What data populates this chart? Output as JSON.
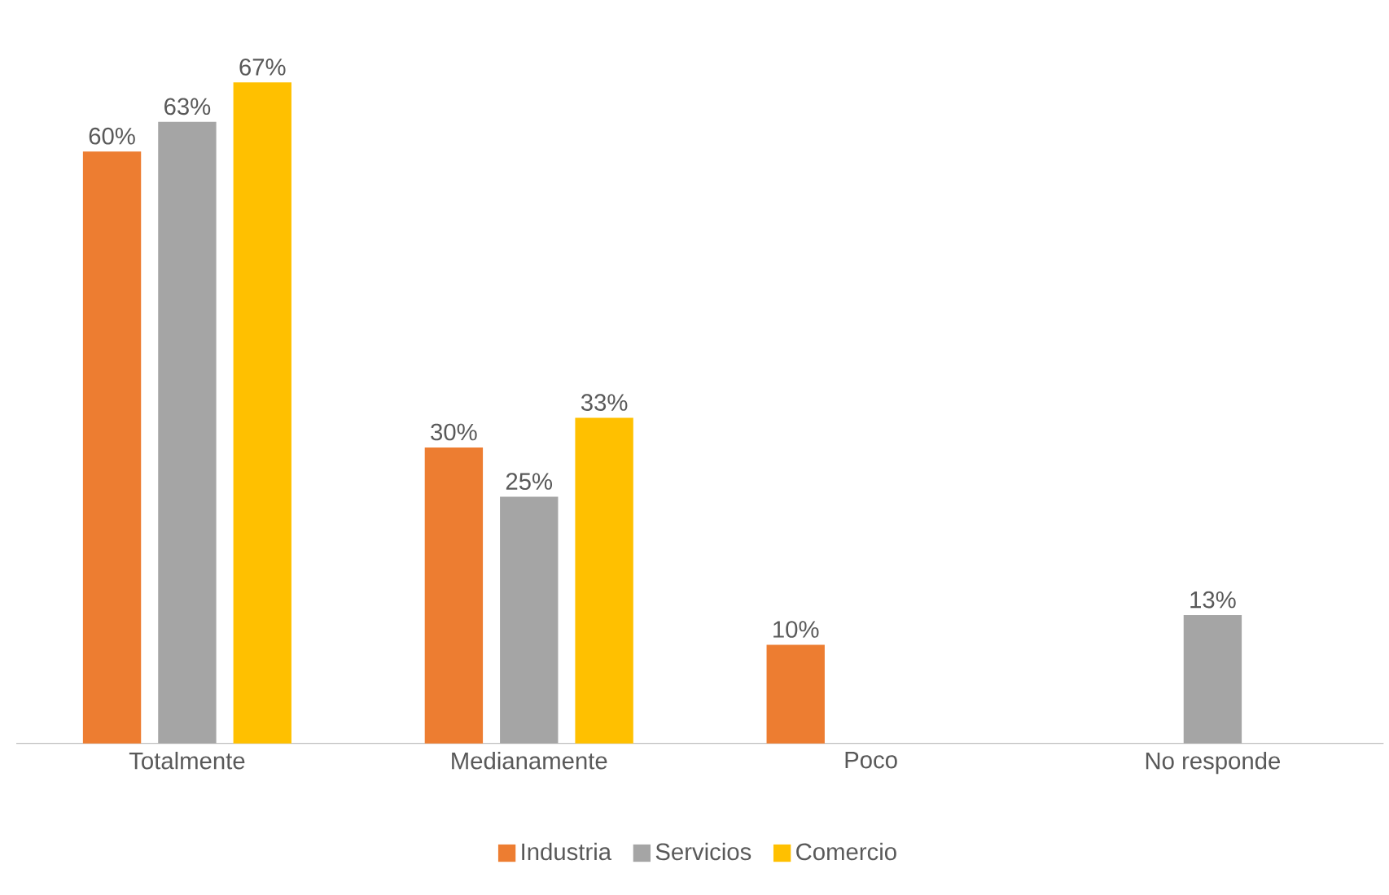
{
  "chart_data": {
    "type": "bar",
    "categories": [
      "Totalmente",
      "Medianamente",
      "Poco",
      "No responde"
    ],
    "series": [
      {
        "name": "Industria",
        "color": "#ed7d31",
        "values": [
          60,
          30,
          10,
          null
        ],
        "value_labels": [
          "60%",
          "30%",
          "10%",
          null
        ]
      },
      {
        "name": "Servicios",
        "color": "#a5a5a5",
        "values": [
          63,
          25,
          null,
          13
        ],
        "value_labels": [
          "63%",
          "25%",
          null,
          "13%"
        ]
      },
      {
        "name": "Comercio",
        "color": "#ffc000",
        "values": [
          67,
          33,
          null,
          null
        ],
        "value_labels": [
          "67%",
          "33%",
          null,
          null
        ]
      }
    ],
    "legend": "bottom"
  }
}
